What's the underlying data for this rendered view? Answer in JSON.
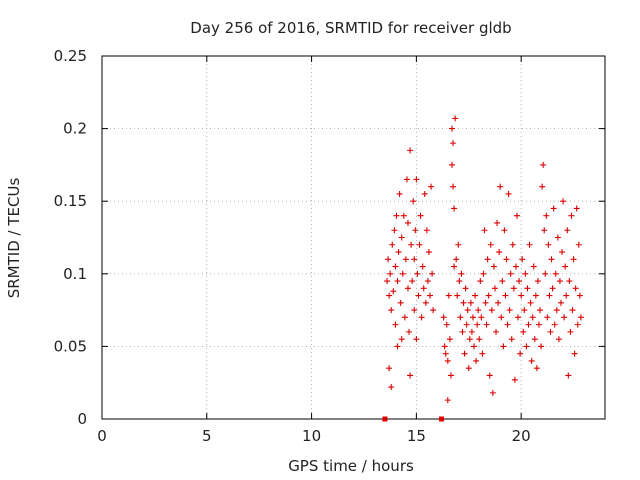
{
  "chart_data": {
    "type": "scatter",
    "title": "Day 256 of 2016, SRMTID for receiver gldb",
    "xlabel": "GPS time / hours",
    "ylabel": "SRMTID / TECUs",
    "xlim": [
      0,
      24
    ],
    "ylim": [
      0,
      0.25
    ],
    "x_ticks": [
      0,
      5,
      10,
      15,
      20
    ],
    "x_tick_labels": [
      "0",
      "5",
      "10",
      "15",
      "20"
    ],
    "y_ticks": [
      0,
      0.05,
      0.1,
      0.15,
      0.2,
      0.25
    ],
    "y_tick_labels": [
      "0",
      "0.05",
      "0.1",
      "0.15",
      "0.2",
      "0.25"
    ],
    "grid": true,
    "marker": "+",
    "color": "#dd0000",
    "series": [
      {
        "name": "SRMTID",
        "points": [
          [
            13.6,
            0.095
          ],
          [
            13.65,
            0.11
          ],
          [
            13.7,
            0.035
          ],
          [
            13.7,
            0.085
          ],
          [
            13.75,
            0.1
          ],
          [
            13.8,
            0.022
          ],
          [
            13.8,
            0.075
          ],
          [
            13.85,
            0.12
          ],
          [
            13.9,
            0.088
          ],
          [
            13.95,
            0.13
          ],
          [
            14.0,
            0.065
          ],
          [
            14.0,
            0.105
          ],
          [
            14.05,
            0.14
          ],
          [
            14.1,
            0.05
          ],
          [
            14.1,
            0.095
          ],
          [
            14.15,
            0.115
          ],
          [
            14.2,
            0.155
          ],
          [
            14.25,
            0.08
          ],
          [
            14.3,
            0.125
          ],
          [
            14.3,
            0.055
          ],
          [
            14.35,
            0.1
          ],
          [
            14.4,
            0.14
          ],
          [
            14.45,
            0.07
          ],
          [
            14.5,
            0.11
          ],
          [
            14.55,
            0.165
          ],
          [
            14.6,
            0.09
          ],
          [
            14.6,
            0.135
          ],
          [
            14.65,
            0.06
          ],
          [
            14.7,
            0.185
          ],
          [
            14.7,
            0.03
          ],
          [
            14.75,
            0.12
          ],
          [
            14.8,
            0.095
          ],
          [
            14.85,
            0.15
          ],
          [
            14.9,
            0.075
          ],
          [
            14.9,
            0.11
          ],
          [
            14.95,
            0.13
          ],
          [
            15.0,
            0.055
          ],
          [
            15.0,
            0.165
          ],
          [
            15.05,
            0.1
          ],
          [
            15.1,
            0.085
          ],
          [
            15.15,
            0.12
          ],
          [
            15.2,
            0.14
          ],
          [
            15.25,
            0.07
          ],
          [
            15.3,
            0.105
          ],
          [
            15.35,
            0.09
          ],
          [
            15.4,
            0.155
          ],
          [
            15.45,
            0.08
          ],
          [
            15.5,
            0.13
          ],
          [
            15.55,
            0.095
          ],
          [
            15.6,
            0.115
          ],
          [
            15.65,
            0.085
          ],
          [
            15.7,
            0.16
          ],
          [
            15.75,
            0.1
          ],
          [
            15.8,
            0.075
          ],
          [
            16.3,
            0.07
          ],
          [
            16.35,
            0.05
          ],
          [
            16.4,
            0.045
          ],
          [
            16.45,
            0.065
          ],
          [
            16.5,
            0.013
          ],
          [
            16.5,
            0.04
          ],
          [
            16.55,
            0.085
          ],
          [
            16.6,
            0.055
          ],
          [
            16.65,
            0.03
          ],
          [
            16.7,
            0.2
          ],
          [
            16.7,
            0.175
          ],
          [
            16.75,
            0.16
          ],
          [
            16.75,
            0.19
          ],
          [
            16.8,
            0.145
          ],
          [
            16.8,
            0.105
          ],
          [
            16.85,
            0.207
          ],
          [
            16.9,
            0.11
          ],
          [
            16.95,
            0.085
          ],
          [
            17.0,
            0.12
          ],
          [
            17.05,
            0.095
          ],
          [
            17.1,
            0.07
          ],
          [
            17.15,
            0.1
          ],
          [
            17.2,
            0.06
          ],
          [
            17.25,
            0.08
          ],
          [
            17.3,
            0.045
          ],
          [
            17.35,
            0.09
          ],
          [
            17.4,
            0.065
          ],
          [
            17.45,
            0.075
          ],
          [
            17.5,
            0.035
          ],
          [
            17.55,
            0.055
          ],
          [
            17.6,
            0.08
          ],
          [
            17.65,
            0.06
          ],
          [
            17.7,
            0.07
          ],
          [
            17.75,
            0.05
          ],
          [
            17.8,
            0.085
          ],
          [
            17.85,
            0.04
          ],
          [
            17.9,
            0.065
          ],
          [
            17.95,
            0.075
          ],
          [
            18.0,
            0.055
          ],
          [
            18.05,
            0.095
          ],
          [
            18.1,
            0.07
          ],
          [
            18.15,
            0.045
          ],
          [
            18.2,
            0.1
          ],
          [
            18.25,
            0.13
          ],
          [
            18.3,
            0.08
          ],
          [
            18.35,
            0.065
          ],
          [
            18.4,
            0.11
          ],
          [
            18.45,
            0.085
          ],
          [
            18.5,
            0.03
          ],
          [
            18.55,
            0.12
          ],
          [
            18.6,
            0.075
          ],
          [
            18.65,
            0.018
          ],
          [
            18.7,
            0.105
          ],
          [
            18.75,
            0.09
          ],
          [
            18.8,
            0.06
          ],
          [
            18.85,
            0.135
          ],
          [
            18.9,
            0.08
          ],
          [
            18.95,
            0.115
          ],
          [
            19.0,
            0.16
          ],
          [
            19.05,
            0.07
          ],
          [
            19.1,
            0.095
          ],
          [
            19.15,
            0.05
          ],
          [
            19.2,
            0.13
          ],
          [
            19.25,
            0.085
          ],
          [
            19.3,
            0.11
          ],
          [
            19.35,
            0.065
          ],
          [
            19.4,
            0.155
          ],
          [
            19.45,
            0.075
          ],
          [
            19.5,
            0.1
          ],
          [
            19.55,
            0.055
          ],
          [
            19.6,
            0.12
          ],
          [
            19.65,
            0.09
          ],
          [
            19.7,
            0.027
          ],
          [
            19.75,
            0.105
          ],
          [
            19.8,
            0.14
          ],
          [
            19.85,
            0.07
          ],
          [
            19.9,
            0.095
          ],
          [
            19.95,
            0.045
          ],
          [
            20.0,
            0.085
          ],
          [
            20.05,
            0.11
          ],
          [
            20.1,
            0.06
          ],
          [
            20.15,
            0.075
          ],
          [
            20.2,
            0.1
          ],
          [
            20.25,
            0.05
          ],
          [
            20.3,
            0.09
          ],
          [
            20.35,
            0.065
          ],
          [
            20.4,
            0.12
          ],
          [
            20.45,
            0.08
          ],
          [
            20.5,
            0.04
          ],
          [
            20.55,
            0.07
          ],
          [
            20.6,
            0.105
          ],
          [
            20.65,
            0.055
          ],
          [
            20.7,
            0.085
          ],
          [
            20.75,
            0.035
          ],
          [
            20.8,
            0.095
          ],
          [
            20.85,
            0.065
          ],
          [
            20.9,
            0.075
          ],
          [
            20.95,
            0.05
          ],
          [
            21.0,
            0.16
          ],
          [
            21.05,
            0.175
          ],
          [
            21.1,
            0.13
          ],
          [
            21.15,
            0.1
          ],
          [
            21.2,
            0.14
          ],
          [
            21.25,
            0.07
          ],
          [
            21.3,
            0.12
          ],
          [
            21.35,
            0.085
          ],
          [
            21.4,
            0.06
          ],
          [
            21.45,
            0.11
          ],
          [
            21.5,
            0.09
          ],
          [
            21.55,
            0.145
          ],
          [
            21.6,
            0.065
          ],
          [
            21.65,
            0.1
          ],
          [
            21.7,
            0.075
          ],
          [
            21.75,
            0.125
          ],
          [
            21.8,
            0.055
          ],
          [
            21.85,
            0.095
          ],
          [
            21.9,
            0.08
          ],
          [
            21.95,
            0.115
          ],
          [
            22.0,
            0.15
          ],
          [
            22.05,
            0.07
          ],
          [
            22.1,
            0.105
          ],
          [
            22.15,
            0.085
          ],
          [
            22.2,
            0.13
          ],
          [
            22.25,
            0.03
          ],
          [
            22.3,
            0.095
          ],
          [
            22.35,
            0.06
          ],
          [
            22.4,
            0.14
          ],
          [
            22.45,
            0.075
          ],
          [
            22.5,
            0.11
          ],
          [
            22.55,
            0.045
          ],
          [
            22.6,
            0.09
          ],
          [
            22.65,
            0.145
          ],
          [
            22.7,
            0.065
          ],
          [
            22.75,
            0.12
          ],
          [
            22.8,
            0.085
          ],
          [
            22.85,
            0.07
          ],
          [
            13.5,
            0.0
          ],
          [
            16.2,
            0.0
          ]
        ]
      }
    ]
  }
}
